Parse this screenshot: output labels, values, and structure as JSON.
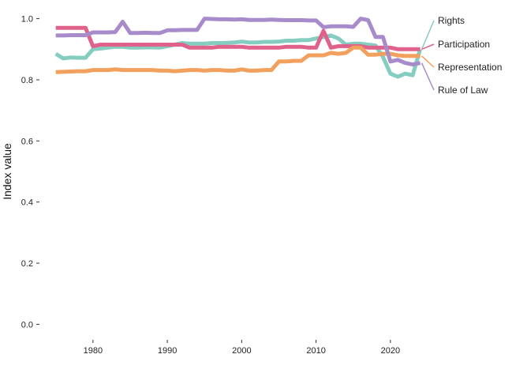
{
  "chart_data": {
    "type": "line",
    "title": "",
    "xlabel": "",
    "ylabel": "Index value",
    "xlim": [
      1974.5,
      2025
    ],
    "ylim": [
      -0.03,
      1.03
    ],
    "x_ticks": [
      1980,
      1990,
      2000,
      2010,
      2020
    ],
    "y_ticks": [
      0.0,
      0.2,
      0.4,
      0.6,
      0.8,
      1.0
    ],
    "y_tick_labels": [
      "0.0",
      "0.2",
      "0.4",
      "0.6",
      "0.8",
      "1.0"
    ],
    "x": [
      1975,
      1976,
      1977,
      1978,
      1979,
      1980,
      1981,
      1982,
      1983,
      1984,
      1985,
      1986,
      1987,
      1988,
      1989,
      1990,
      1991,
      1992,
      1993,
      1994,
      1995,
      1996,
      1997,
      1998,
      1999,
      2000,
      2001,
      2002,
      2003,
      2004,
      2005,
      2006,
      2007,
      2008,
      2009,
      2010,
      2011,
      2012,
      2013,
      2014,
      2015,
      2016,
      2017,
      2018,
      2019,
      2020,
      2021,
      2022,
      2023,
      2024
    ],
    "grid": false,
    "legend": "direct labels at right",
    "series": [
      {
        "name": "Rights",
        "color": "#86cdc1",
        "values": [
          0.885,
          0.87,
          0.873,
          0.872,
          0.872,
          0.9,
          0.902,
          0.905,
          0.908,
          0.908,
          0.905,
          0.905,
          0.906,
          0.906,
          0.905,
          0.91,
          0.915,
          0.92,
          0.918,
          0.918,
          0.918,
          0.92,
          0.92,
          0.921,
          0.922,
          0.925,
          0.922,
          0.922,
          0.924,
          0.924,
          0.925,
          0.928,
          0.928,
          0.93,
          0.93,
          0.935,
          0.94,
          0.945,
          0.935,
          0.915,
          0.918,
          0.918,
          0.915,
          0.912,
          0.875,
          0.82,
          0.81,
          0.82,
          0.815,
          0.9
        ]
      },
      {
        "name": "Participation",
        "color": "#e0618a",
        "values": [
          0.97,
          0.97,
          0.97,
          0.97,
          0.97,
          0.91,
          0.915,
          0.915,
          0.915,
          0.915,
          0.915,
          0.915,
          0.915,
          0.915,
          0.915,
          0.915,
          0.915,
          0.915,
          0.905,
          0.905,
          0.905,
          0.905,
          0.908,
          0.908,
          0.908,
          0.908,
          0.905,
          0.905,
          0.905,
          0.905,
          0.905,
          0.908,
          0.908,
          0.908,
          0.905,
          0.905,
          0.96,
          0.905,
          0.91,
          0.91,
          0.91,
          0.91,
          0.905,
          0.905,
          0.905,
          0.905,
          0.9,
          0.9,
          0.9,
          0.9
        ]
      },
      {
        "name": "Representation",
        "color": "#f2a05d",
        "values": [
          0.825,
          0.826,
          0.827,
          0.828,
          0.828,
          0.832,
          0.832,
          0.832,
          0.834,
          0.832,
          0.832,
          0.832,
          0.832,
          0.832,
          0.83,
          0.83,
          0.828,
          0.83,
          0.832,
          0.832,
          0.83,
          0.832,
          0.832,
          0.83,
          0.83,
          0.834,
          0.83,
          0.83,
          0.832,
          0.832,
          0.86,
          0.86,
          0.862,
          0.862,
          0.88,
          0.88,
          0.88,
          0.888,
          0.885,
          0.888,
          0.905,
          0.905,
          0.882,
          0.882,
          0.885,
          0.885,
          0.88,
          0.878,
          0.878,
          0.878
        ]
      },
      {
        "name": "Rule of Law",
        "color": "#a78bcb",
        "values": [
          0.945,
          0.945,
          0.946,
          0.946,
          0.946,
          0.955,
          0.955,
          0.955,
          0.956,
          0.99,
          0.953,
          0.953,
          0.954,
          0.953,
          0.953,
          0.962,
          0.962,
          0.963,
          0.963,
          0.963,
          1.0,
          0.999,
          0.998,
          0.998,
          0.997,
          0.998,
          0.996,
          0.996,
          0.996,
          0.997,
          0.996,
          0.995,
          0.995,
          0.995,
          0.994,
          0.994,
          0.972,
          0.975,
          0.975,
          0.975,
          0.973,
          1.0,
          0.995,
          0.94,
          0.94,
          0.86,
          0.865,
          0.855,
          0.85,
          0.855
        ]
      }
    ]
  }
}
